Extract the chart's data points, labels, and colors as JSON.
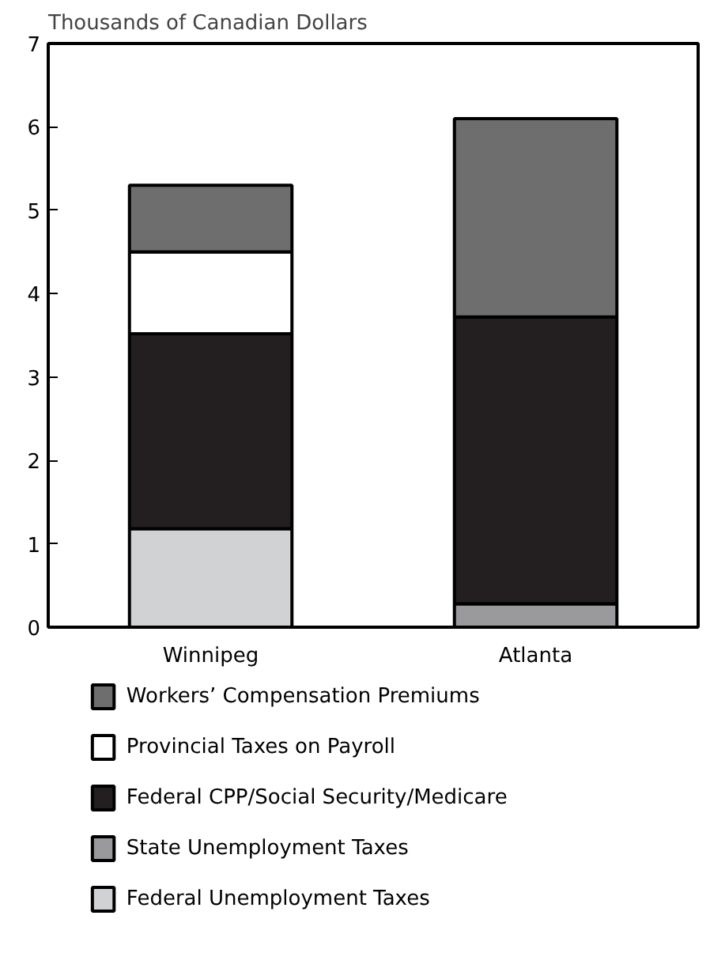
{
  "chart_data": {
    "type": "bar",
    "stacked": true,
    "ylabel": "Thousands of Canadian Dollars",
    "categories": [
      "Winnipeg",
      "Atlanta"
    ],
    "series": [
      {
        "name": "Federal Unemployment Taxes",
        "color": "#d1d2d4",
        "values": [
          1.18,
          null
        ]
      },
      {
        "name": "State Unemployment Taxes",
        "color": "#9a9a9c",
        "values": [
          null,
          0.28
        ]
      },
      {
        "name": "Federal CPP/Social Security/Medicare",
        "color": "#231f20",
        "values": [
          2.34,
          3.44
        ]
      },
      {
        "name": "Provincial Taxes on Payroll",
        "color": "#ffffff",
        "values": [
          0.98,
          null
        ]
      },
      {
        "name": "Workers’ Compensation Premiums",
        "color": "#6e6e6e",
        "values": [
          0.8,
          2.38
        ]
      }
    ],
    "ylim": [
      0,
      7
    ],
    "yticks": [
      0,
      1,
      2,
      3,
      4,
      5,
      6,
      7
    ],
    "grid": false,
    "legend": "bottom"
  }
}
